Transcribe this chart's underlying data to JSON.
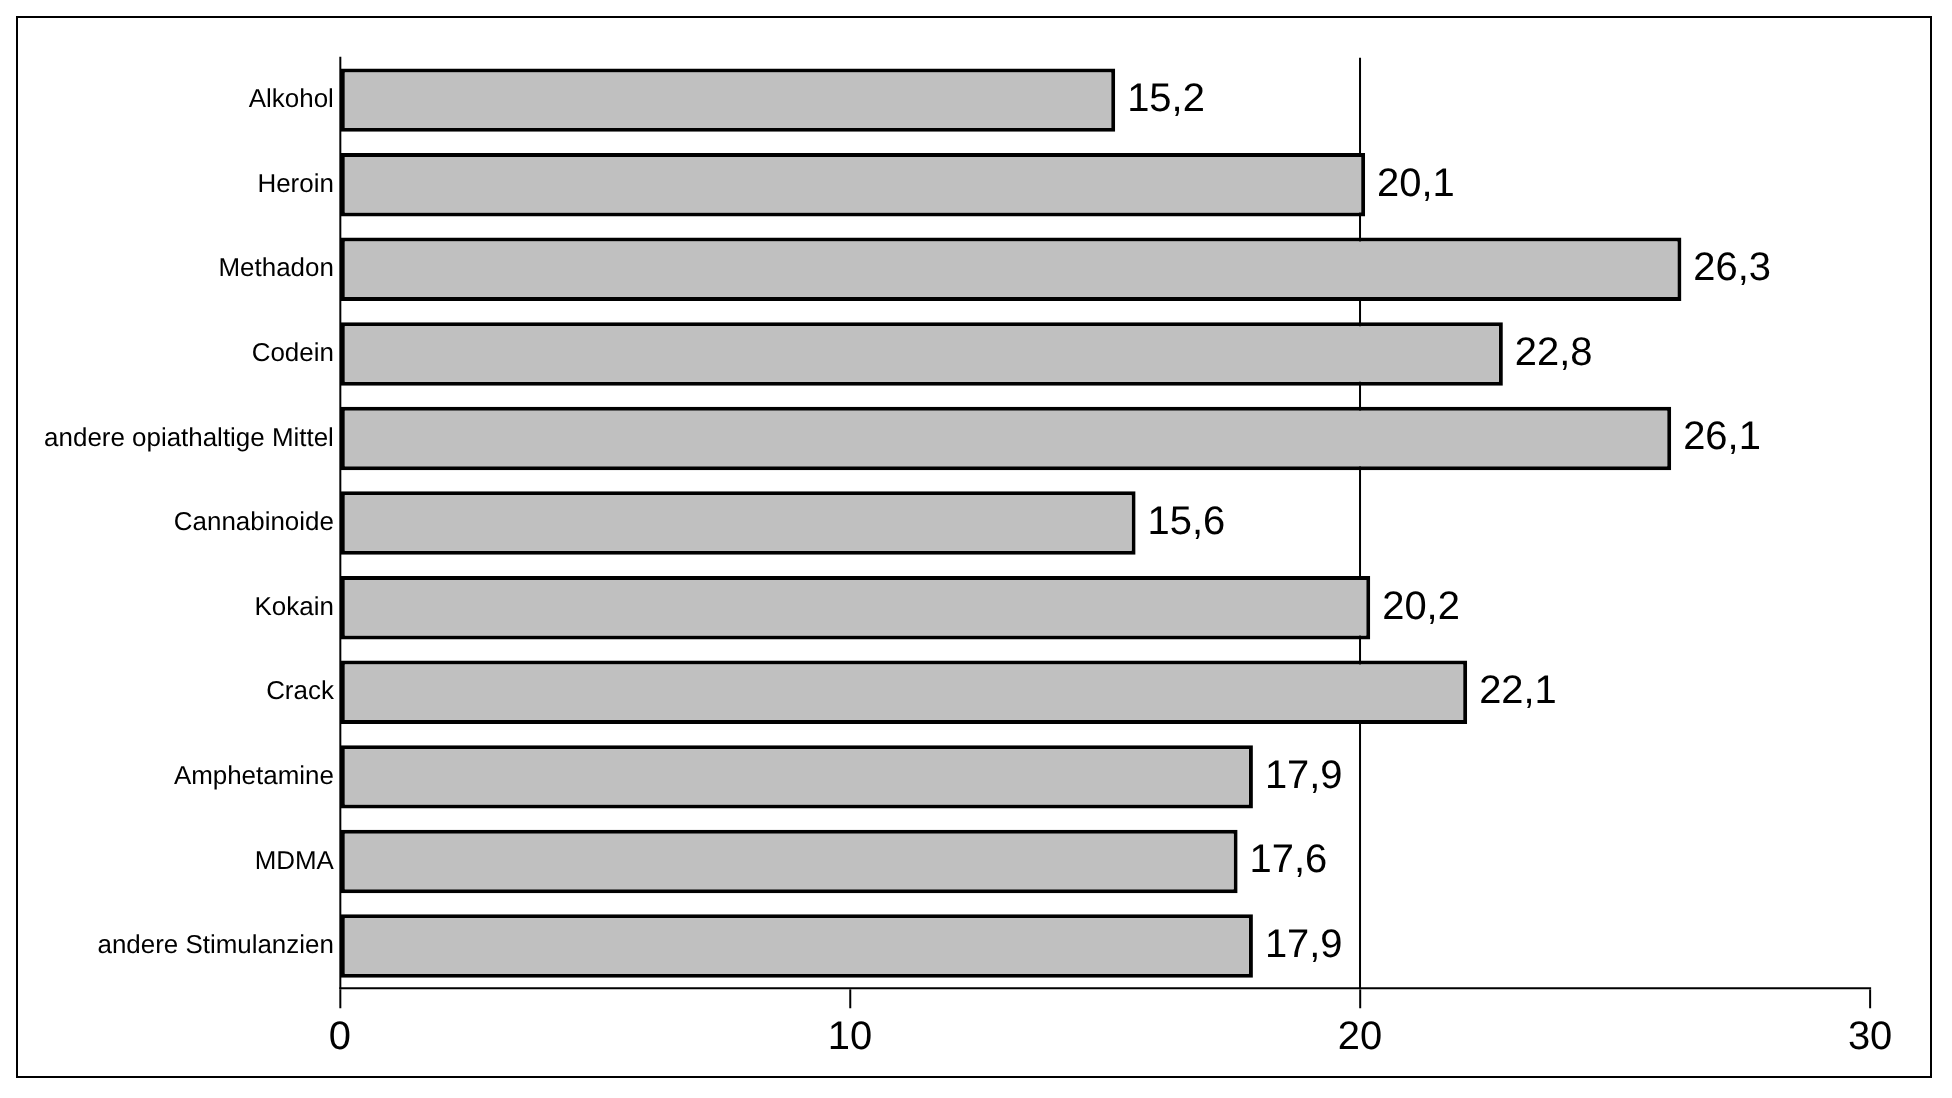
{
  "chart_data": {
    "type": "bar",
    "orientation": "horizontal",
    "categories": [
      "Alkohol",
      "Heroin",
      "Methadon",
      "Codein",
      "andere opiathaltige Mittel",
      "Cannabinoide",
      "Kokain",
      "Crack",
      "Amphetamine",
      "MDMA",
      "andere Stimulanzien"
    ],
    "values": [
      15.2,
      20.1,
      26.3,
      22.8,
      26.1,
      15.6,
      20.2,
      22.1,
      17.9,
      17.6,
      17.9
    ],
    "value_labels": [
      "15,2",
      "20,1",
      "26,3",
      "22,8",
      "26,1",
      "15,6",
      "20,2",
      "22,1",
      "17,9",
      "17,6",
      "17,9"
    ],
    "color": "#c0c0c0",
    "xlim": [
      0,
      30
    ],
    "xticks": [
      0,
      10,
      20,
      30
    ],
    "ref_lines": [
      {
        "axis": "x",
        "value": 20,
        "color": "#000000"
      }
    ],
    "legend": false
  }
}
